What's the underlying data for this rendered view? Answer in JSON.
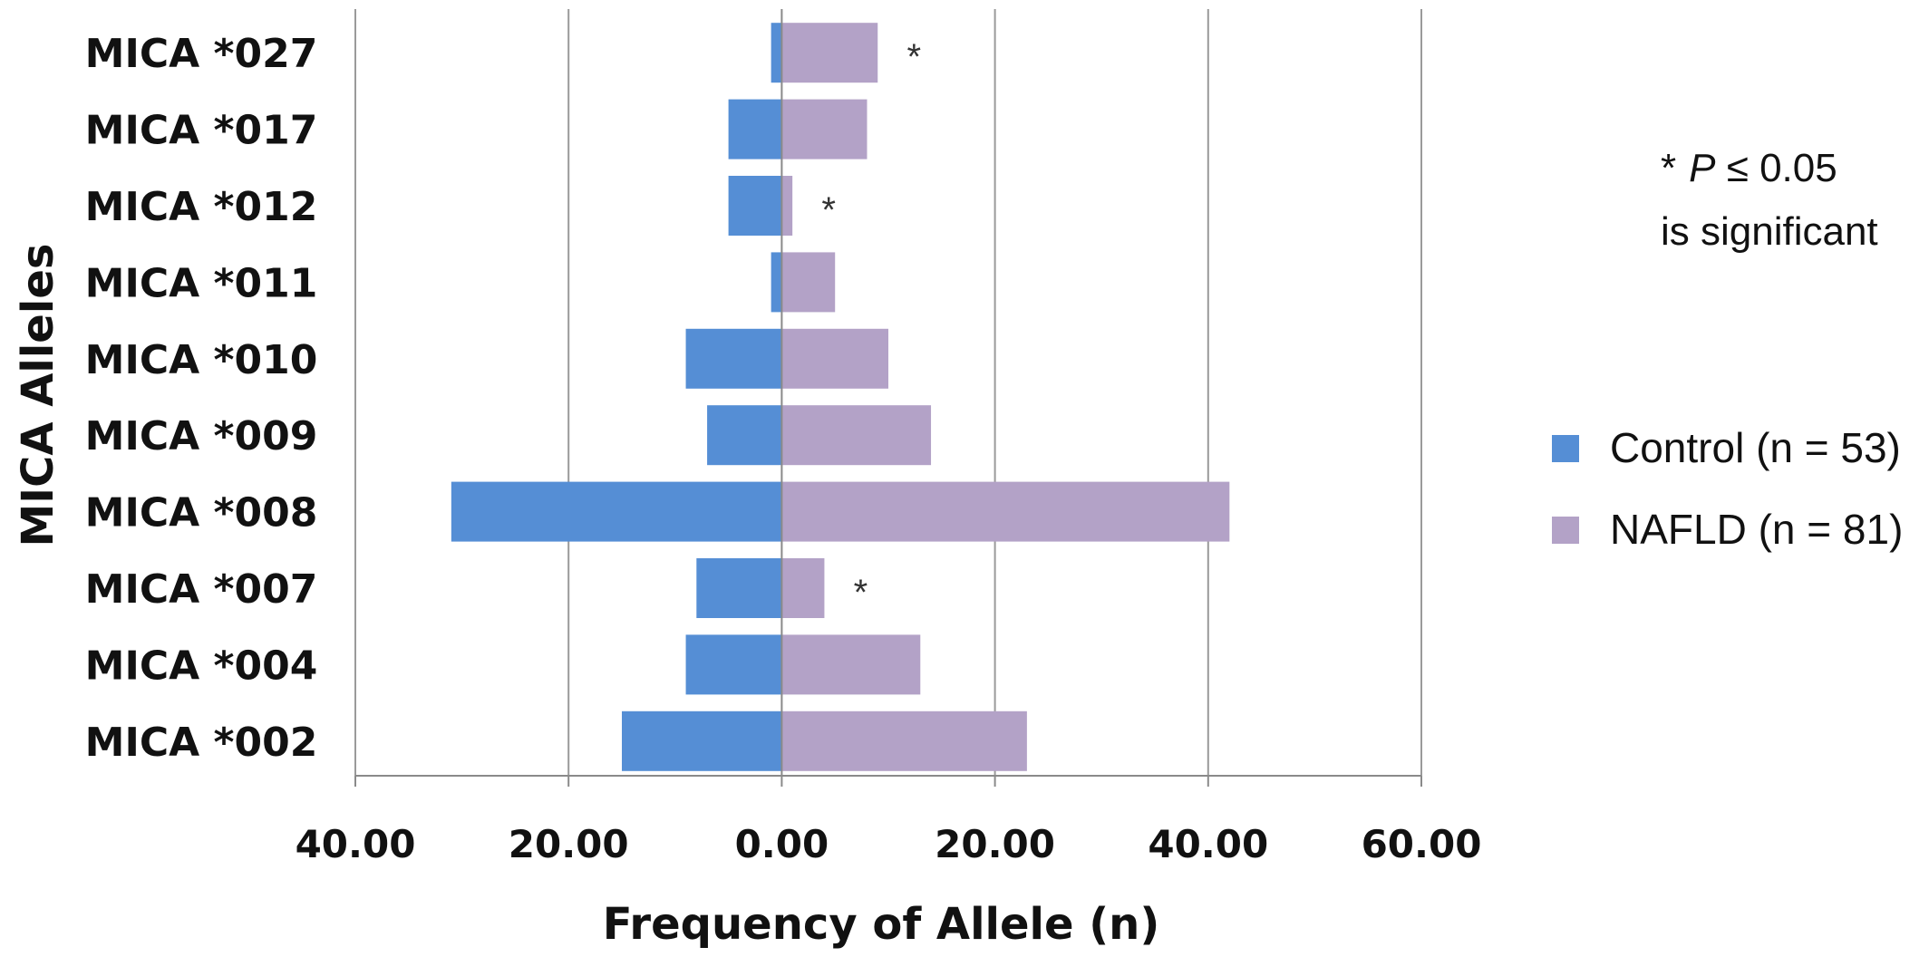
{
  "chart_data": {
    "type": "bar",
    "orientation": "horizontal",
    "layout": "butterfly",
    "categories": [
      "MICA *027",
      "MICA *017",
      "MICA *012",
      "MICA *011",
      "MICA *010",
      "MICA *009",
      "MICA *008",
      "MICA *007",
      "MICA *004",
      "MICA *002"
    ],
    "series": [
      {
        "name": "Control (n = 53)",
        "color": "#558ed5",
        "direction": "left",
        "values": [
          1,
          5,
          5,
          1,
          9,
          7,
          31,
          8,
          9,
          15
        ]
      },
      {
        "name": "NAFLD (n = 81)",
        "color": "#b3a2c7",
        "direction": "right",
        "values": [
          9,
          8,
          1,
          5,
          10,
          14,
          42,
          4,
          13,
          23
        ]
      }
    ],
    "significant": [
      "MICA *027",
      "MICA *012",
      "MICA *007"
    ],
    "significance_marker": "*",
    "xlim": [
      -40,
      60
    ],
    "xticks": [
      -40,
      -20,
      0,
      20,
      40,
      60
    ],
    "xtick_labels": [
      "40.00",
      "20.00",
      "0.00",
      "20.00",
      "40.00",
      "60.00"
    ],
    "xlabel": "Frequency of Allele (n)",
    "ylabel": "MICA Alleles",
    "grid": "vertical",
    "legend_position": "right",
    "note": {
      "star": "*",
      "p": "P",
      "rest": " ≤ 0.05",
      "line2": "is significant"
    }
  }
}
